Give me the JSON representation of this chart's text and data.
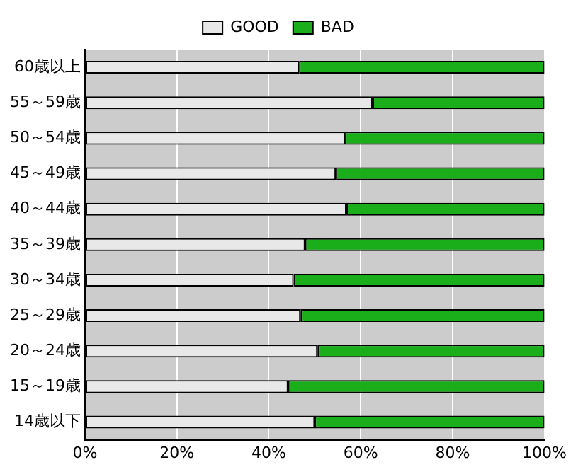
{
  "chart_data": {
    "type": "bar",
    "orientation": "horizontal",
    "stacked": true,
    "categories": [
      "60歳以上",
      "55～59歳",
      "50～54歳",
      "45～49歳",
      "40～44歳",
      "35～39歳",
      "30～34歳",
      "25～29歳",
      "20～24歳",
      "15～19歳",
      "14歳以下"
    ],
    "series": [
      {
        "name": "GOOD",
        "color": "#e8e8e8",
        "values": [
          46.6,
          62.6,
          56.6,
          54.6,
          56.9,
          47.9,
          45.4,
          46.9,
          50.6,
          44.2,
          50.0
        ]
      },
      {
        "name": "BAD",
        "color": "#1aae1a",
        "values": [
          53.4,
          37.4,
          43.4,
          45.4,
          43.1,
          52.1,
          54.6,
          53.1,
          49.4,
          55.8,
          50.0
        ]
      }
    ],
    "xlim": [
      0,
      100
    ],
    "xticks": [
      {
        "value": 0,
        "label": "0%"
      },
      {
        "value": 20,
        "label": "20%"
      },
      {
        "value": 40,
        "label": "40%"
      },
      {
        "value": 60,
        "label": "60%"
      },
      {
        "value": 80,
        "label": "80%"
      },
      {
        "value": 100,
        "label": "100%"
      }
    ],
    "grid": "x",
    "legend": "top"
  }
}
